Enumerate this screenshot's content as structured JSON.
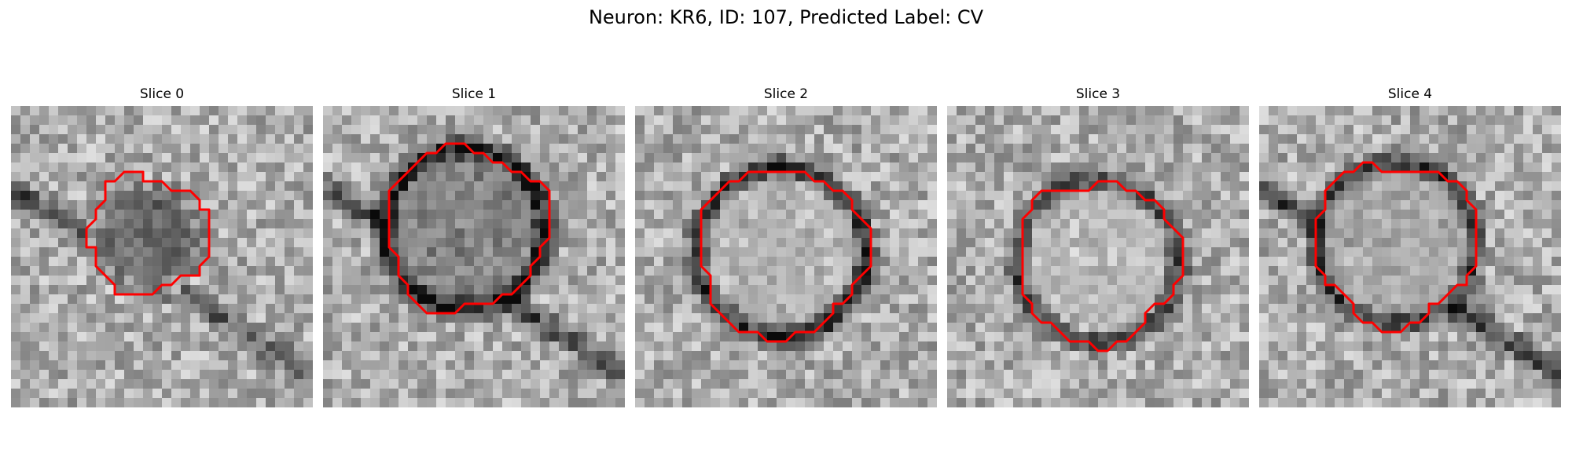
{
  "figure": {
    "title": "Neuron: KR6, ID: 107, Predicted Label: CV"
  },
  "panels": [
    {
      "title": "Slice 0",
      "outline_color": "#ff0000"
    },
    {
      "title": "Slice 1",
      "outline_color": "#ff0000"
    },
    {
      "title": "Slice 2",
      "outline_color": "#ff0000"
    },
    {
      "title": "Slice 3",
      "outline_color": "#ff0000"
    },
    {
      "title": "Slice 4",
      "outline_color": "#ff0000"
    }
  ]
}
